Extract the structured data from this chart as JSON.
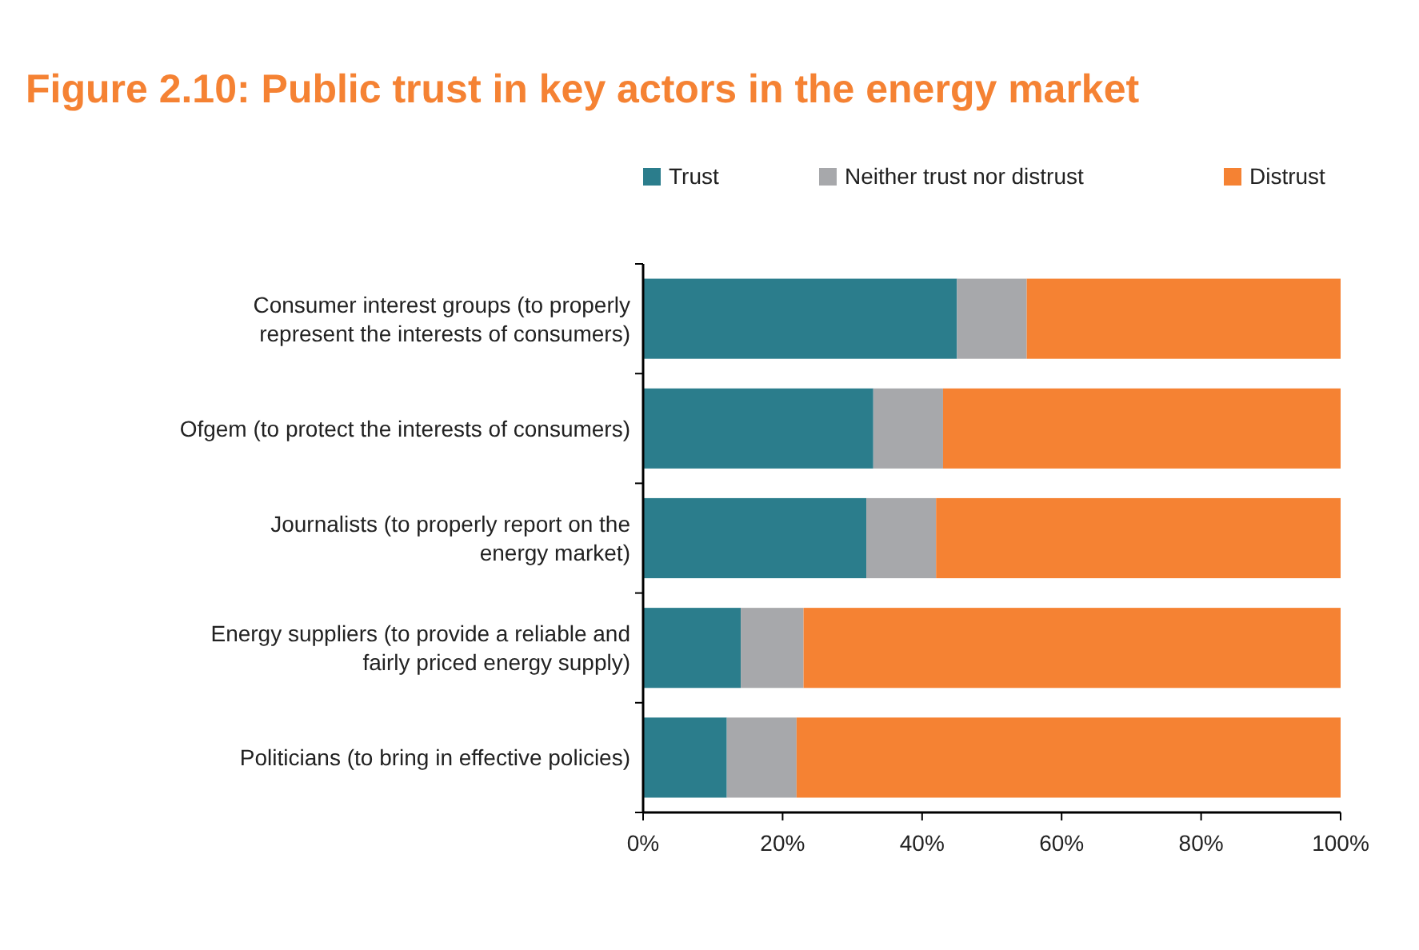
{
  "chart_data": {
    "type": "bar",
    "orientation": "horizontal",
    "stacked": true,
    "title": "Figure 2.10: Public trust in key actors in the energy market",
    "categories": [
      "Consumer interest groups (to properly represent the interests of consumers)",
      "Ofgem  (to protect the interests of consumers)",
      "Journalists (to properly report on the energy market)",
      "Energy suppliers (to provide a reliable and fairly priced energy supply)",
      "Politicians (to bring in effective policies)"
    ],
    "series": [
      {
        "name": "Trust",
        "color": "#2b7d8c",
        "values": [
          45,
          33,
          32,
          14,
          12
        ]
      },
      {
        "name": "Neither trust nor distrust",
        "color": "#a7a8ab",
        "values": [
          10,
          10,
          10,
          9,
          10
        ]
      },
      {
        "name": "Distrust",
        "color": "#f58233",
        "values": [
          45,
          57,
          58,
          77,
          78
        ]
      }
    ],
    "xlim": [
      0,
      100
    ],
    "xticks": [
      {
        "value": 0,
        "label": "0%"
      },
      {
        "value": 20,
        "label": "20%"
      },
      {
        "value": 40,
        "label": "40%"
      },
      {
        "value": 60,
        "label": "60%"
      },
      {
        "value": 80,
        "label": "80%"
      },
      {
        "value": 100,
        "label": "100%"
      }
    ],
    "grid": false,
    "legend": "top right"
  }
}
